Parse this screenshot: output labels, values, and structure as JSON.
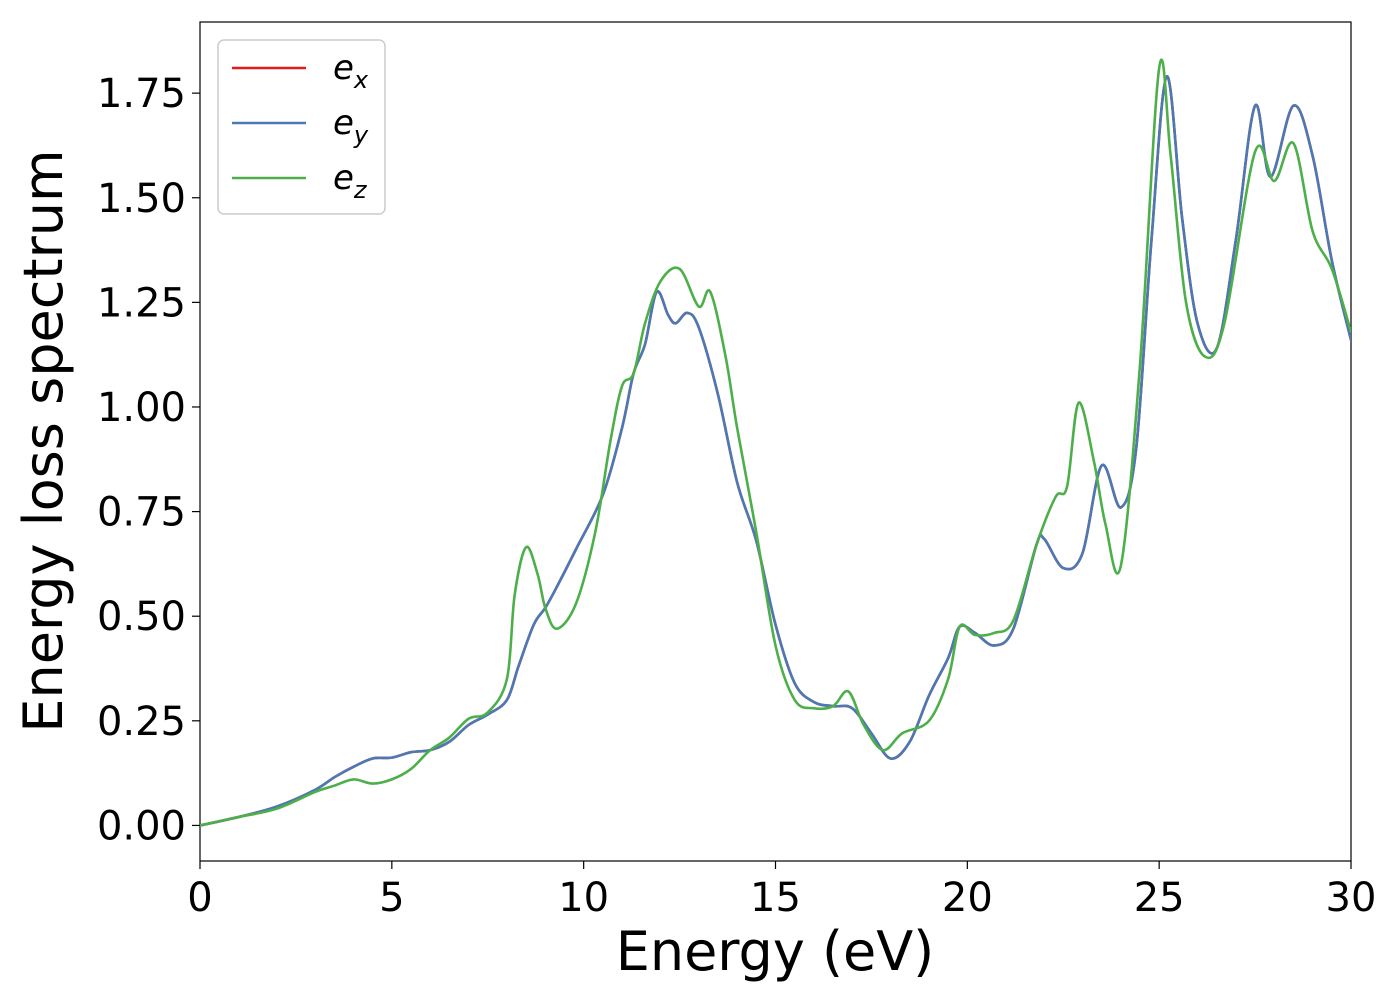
{
  "chart_data": {
    "type": "line",
    "xlabel": "Energy (eV)",
    "ylabel": "Energy loss spectrum",
    "xlim": [
      0,
      30
    ],
    "ylim": [
      -0.085,
      1.92
    ],
    "xticks": [
      0,
      5,
      10,
      15,
      20,
      25,
      30
    ],
    "xtick_labels": [
      "0",
      "5",
      "10",
      "15",
      "20",
      "25",
      "30"
    ],
    "yticks": [
      0.0,
      0.25,
      0.5,
      0.75,
      1.0,
      1.25,
      1.5,
      1.75
    ],
    "ytick_labels": [
      "0.00",
      "0.25",
      "0.50",
      "0.75",
      "1.00",
      "1.25",
      "1.50",
      "1.75"
    ],
    "grid": false,
    "legend_position": "top-left",
    "series": [
      {
        "name": "e",
        "sub": "x",
        "color": "#e41a1c",
        "points": [
          [
            0,
            0.0
          ],
          [
            1,
            0.02
          ],
          [
            2,
            0.045
          ],
          [
            3,
            0.085
          ],
          [
            3.5,
            0.115
          ],
          [
            4,
            0.14
          ],
          [
            4.5,
            0.16
          ],
          [
            5,
            0.162
          ],
          [
            5.5,
            0.175
          ],
          [
            6,
            0.18
          ],
          [
            6.5,
            0.2
          ],
          [
            7,
            0.24
          ],
          [
            7.5,
            0.265
          ],
          [
            8,
            0.3
          ],
          [
            8.3,
            0.38
          ],
          [
            8.7,
            0.48
          ],
          [
            9,
            0.52
          ],
          [
            9.3,
            0.57
          ],
          [
            9.8,
            0.66
          ],
          [
            10.5,
            0.79
          ],
          [
            11,
            0.95
          ],
          [
            11.3,
            1.08
          ],
          [
            11.6,
            1.15
          ],
          [
            11.9,
            1.275
          ],
          [
            12.2,
            1.22
          ],
          [
            12.4,
            1.2
          ],
          [
            12.7,
            1.225
          ],
          [
            13,
            1.19
          ],
          [
            13.5,
            1.03
          ],
          [
            14,
            0.82
          ],
          [
            14.5,
            0.68
          ],
          [
            15,
            0.48
          ],
          [
            15.5,
            0.34
          ],
          [
            16,
            0.295
          ],
          [
            16.5,
            0.285
          ],
          [
            17,
            0.28
          ],
          [
            17.5,
            0.22
          ],
          [
            18,
            0.16
          ],
          [
            18.5,
            0.2
          ],
          [
            19,
            0.31
          ],
          [
            19.5,
            0.4
          ],
          [
            19.8,
            0.475
          ],
          [
            20.2,
            0.46
          ],
          [
            20.7,
            0.43
          ],
          [
            21.2,
            0.47
          ],
          [
            21.8,
            0.67
          ],
          [
            22,
            0.685
          ],
          [
            22.5,
            0.615
          ],
          [
            23,
            0.65
          ],
          [
            23.5,
            0.86
          ],
          [
            24,
            0.76
          ],
          [
            24.4,
            0.9
          ],
          [
            24.8,
            1.4
          ],
          [
            25.2,
            1.79
          ],
          [
            25.6,
            1.45
          ],
          [
            26,
            1.2
          ],
          [
            26.5,
            1.14
          ],
          [
            27,
            1.4
          ],
          [
            27.5,
            1.72
          ],
          [
            27.9,
            1.55
          ],
          [
            28.5,
            1.72
          ],
          [
            29,
            1.6
          ],
          [
            29.5,
            1.35
          ],
          [
            30,
            1.16
          ]
        ]
      },
      {
        "name": "e",
        "sub": "y",
        "color": "#4a7ab5",
        "points": [
          [
            0,
            0.0
          ],
          [
            1,
            0.02
          ],
          [
            2,
            0.045
          ],
          [
            3,
            0.085
          ],
          [
            3.5,
            0.115
          ],
          [
            4,
            0.14
          ],
          [
            4.5,
            0.16
          ],
          [
            5,
            0.162
          ],
          [
            5.5,
            0.175
          ],
          [
            6,
            0.18
          ],
          [
            6.5,
            0.2
          ],
          [
            7,
            0.24
          ],
          [
            7.5,
            0.265
          ],
          [
            8,
            0.3
          ],
          [
            8.3,
            0.38
          ],
          [
            8.7,
            0.48
          ],
          [
            9,
            0.52
          ],
          [
            9.3,
            0.57
          ],
          [
            9.8,
            0.66
          ],
          [
            10.5,
            0.79
          ],
          [
            11,
            0.95
          ],
          [
            11.3,
            1.08
          ],
          [
            11.6,
            1.15
          ],
          [
            11.9,
            1.275
          ],
          [
            12.2,
            1.22
          ],
          [
            12.4,
            1.2
          ],
          [
            12.7,
            1.225
          ],
          [
            13,
            1.19
          ],
          [
            13.5,
            1.03
          ],
          [
            14,
            0.82
          ],
          [
            14.5,
            0.68
          ],
          [
            15,
            0.48
          ],
          [
            15.5,
            0.34
          ],
          [
            16,
            0.295
          ],
          [
            16.5,
            0.285
          ],
          [
            17,
            0.28
          ],
          [
            17.5,
            0.22
          ],
          [
            18,
            0.16
          ],
          [
            18.5,
            0.2
          ],
          [
            19,
            0.31
          ],
          [
            19.5,
            0.4
          ],
          [
            19.8,
            0.475
          ],
          [
            20.2,
            0.46
          ],
          [
            20.7,
            0.43
          ],
          [
            21.2,
            0.47
          ],
          [
            21.8,
            0.67
          ],
          [
            22,
            0.685
          ],
          [
            22.5,
            0.615
          ],
          [
            23,
            0.65
          ],
          [
            23.5,
            0.86
          ],
          [
            24,
            0.76
          ],
          [
            24.4,
            0.9
          ],
          [
            24.8,
            1.4
          ],
          [
            25.2,
            1.79
          ],
          [
            25.6,
            1.45
          ],
          [
            26,
            1.2
          ],
          [
            26.5,
            1.14
          ],
          [
            27,
            1.4
          ],
          [
            27.5,
            1.72
          ],
          [
            27.9,
            1.55
          ],
          [
            28.5,
            1.72
          ],
          [
            29,
            1.6
          ],
          [
            29.5,
            1.35
          ],
          [
            30,
            1.16
          ]
        ]
      },
      {
        "name": "e",
        "sub": "z",
        "color": "#4daf4a",
        "points": [
          [
            0,
            0.0
          ],
          [
            1,
            0.02
          ],
          [
            2,
            0.04
          ],
          [
            3,
            0.08
          ],
          [
            3.5,
            0.095
          ],
          [
            4,
            0.11
          ],
          [
            4.5,
            0.1
          ],
          [
            5,
            0.11
          ],
          [
            5.5,
            0.135
          ],
          [
            6,
            0.18
          ],
          [
            6.5,
            0.21
          ],
          [
            7,
            0.255
          ],
          [
            7.5,
            0.27
          ],
          [
            8,
            0.35
          ],
          [
            8.2,
            0.55
          ],
          [
            8.5,
            0.665
          ],
          [
            8.8,
            0.6
          ],
          [
            9,
            0.52
          ],
          [
            9.3,
            0.47
          ],
          [
            9.8,
            0.53
          ],
          [
            10.3,
            0.7
          ],
          [
            10.7,
            0.92
          ],
          [
            11,
            1.05
          ],
          [
            11.3,
            1.08
          ],
          [
            11.6,
            1.2
          ],
          [
            12,
            1.3
          ],
          [
            12.5,
            1.33
          ],
          [
            13,
            1.24
          ],
          [
            13.3,
            1.275
          ],
          [
            13.7,
            1.12
          ],
          [
            14,
            0.95
          ],
          [
            14.5,
            0.7
          ],
          [
            15,
            0.43
          ],
          [
            15.5,
            0.3
          ],
          [
            16,
            0.28
          ],
          [
            16.5,
            0.285
          ],
          [
            16.9,
            0.32
          ],
          [
            17.3,
            0.24
          ],
          [
            17.8,
            0.18
          ],
          [
            18.3,
            0.22
          ],
          [
            19,
            0.25
          ],
          [
            19.5,
            0.35
          ],
          [
            19.8,
            0.475
          ],
          [
            20.2,
            0.455
          ],
          [
            20.7,
            0.46
          ],
          [
            21.2,
            0.49
          ],
          [
            21.8,
            0.67
          ],
          [
            22.3,
            0.785
          ],
          [
            22.6,
            0.81
          ],
          [
            22.9,
            1.01
          ],
          [
            23.3,
            0.87
          ],
          [
            23.6,
            0.72
          ],
          [
            24,
            0.62
          ],
          [
            24.5,
            1.1
          ],
          [
            25,
            1.81
          ],
          [
            25.3,
            1.6
          ],
          [
            25.7,
            1.25
          ],
          [
            26.2,
            1.12
          ],
          [
            26.7,
            1.2
          ],
          [
            27.5,
            1.61
          ],
          [
            28,
            1.54
          ],
          [
            28.5,
            1.63
          ],
          [
            29,
            1.42
          ],
          [
            29.5,
            1.33
          ],
          [
            30,
            1.18
          ]
        ]
      }
    ]
  }
}
